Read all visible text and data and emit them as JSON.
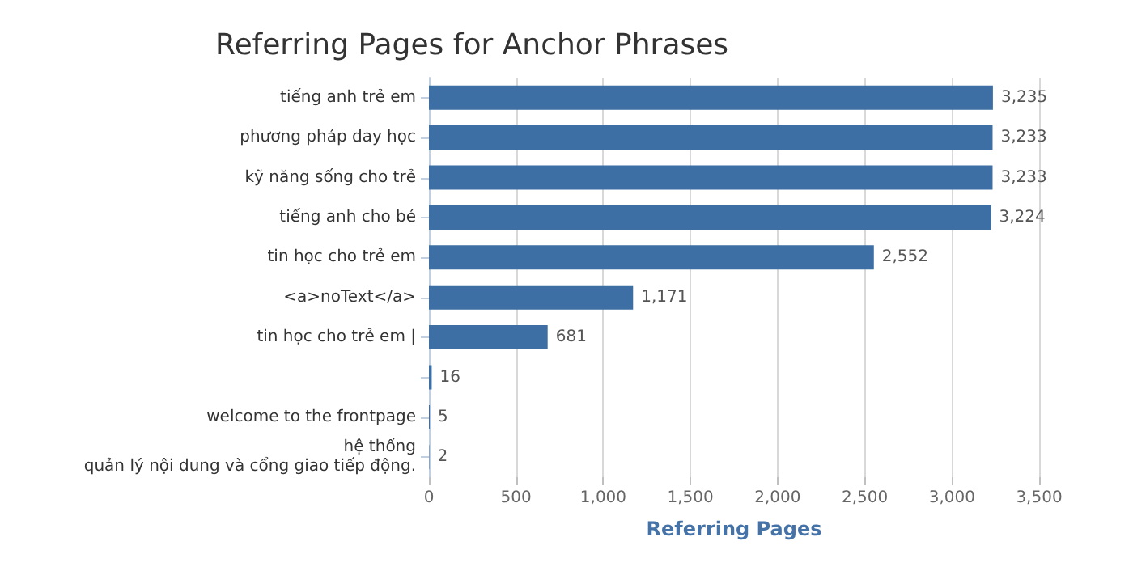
{
  "chart_data": {
    "type": "bar",
    "orientation": "horizontal",
    "title": "Referring Pages for Anchor Phrases",
    "xlabel": "Referring Pages",
    "categories": [
      "tiếng anh trẻ em",
      "phương pháp day học",
      "kỹ năng sống cho trẻ",
      "tiếng anh cho bé",
      "tin học cho trẻ em",
      "<a>noText</a>",
      "tin học cho trẻ em |",
      null,
      "welcome to the frontpage",
      "hệ thống\nquản lý nội dung và cổng giao tiếp động."
    ],
    "values": [
      3235,
      3233,
      3233,
      3224,
      2552,
      1171,
      681,
      16,
      5,
      2
    ],
    "value_labels": [
      "3,235",
      "3,233",
      "3,233",
      "3,224",
      "2,552",
      "1,171",
      "681",
      "16",
      "5",
      "2"
    ],
    "color": "#3d6fa5",
    "xlim": [
      0,
      3500
    ],
    "xticks": [
      0,
      500,
      {
        "value": 1000,
        "label": "1,000"
      },
      {
        "value": 1500,
        "label": "1,500"
      },
      {
        "value": 2000,
        "label": "2,000"
      },
      {
        "value": 2500,
        "label": "2,500"
      },
      {
        "value": 3000,
        "label": "3,000"
      },
      {
        "value": 3500,
        "label": "3,500"
      }
    ],
    "grid": "x"
  }
}
